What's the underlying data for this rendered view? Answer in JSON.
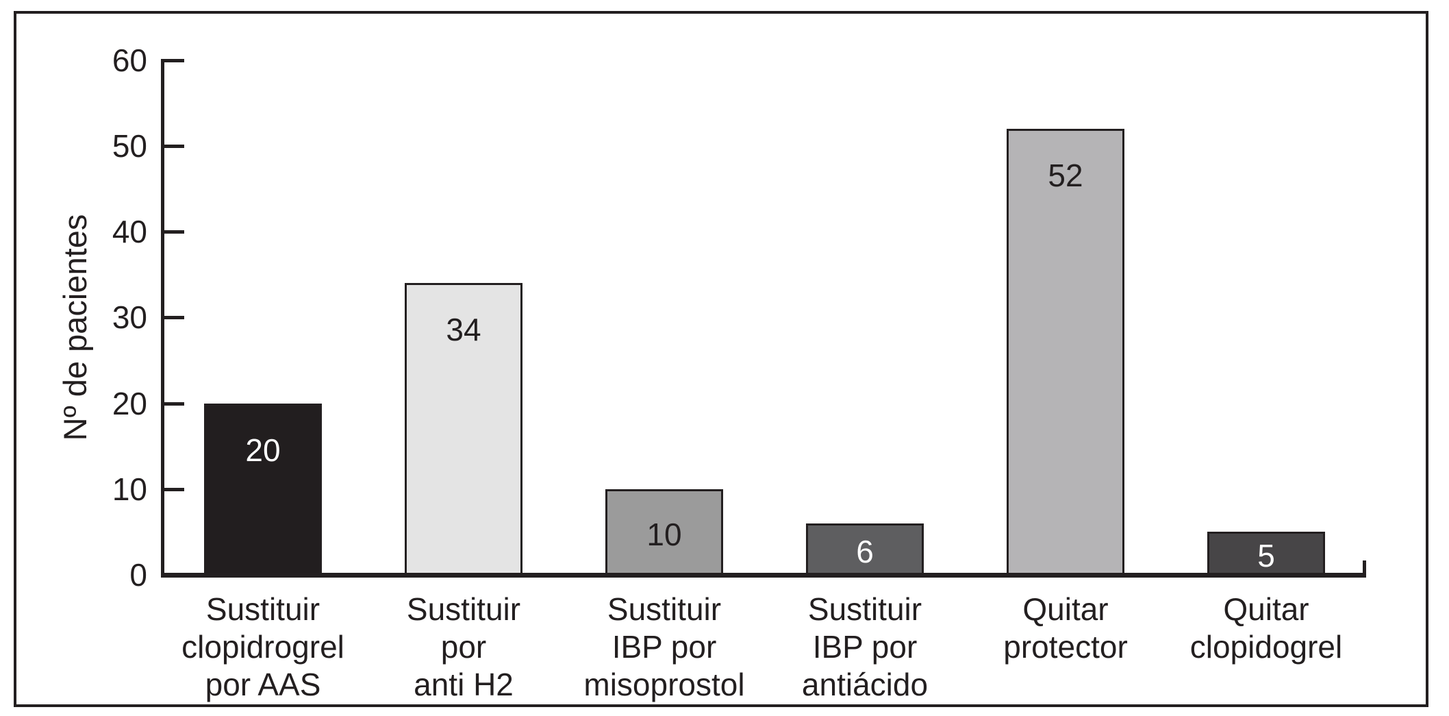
{
  "chart_data": {
    "type": "bar",
    "title": "",
    "ylabel": "Nº de pacientes",
    "xlabel": "",
    "ylim": [
      0,
      60
    ],
    "yticks": [
      0,
      10,
      20,
      30,
      40,
      50,
      60
    ],
    "grid": false,
    "legend": null,
    "categories": [
      "Sustituir\nclopidrogrel\npor AAS",
      "Sustituir\npor\nanti H2",
      "Sustituir\nIBP por\nmisoprostol",
      "Sustituir\nIBP por\nantiácido",
      "Quitar\nprotector",
      "Quitar\nclopidogrel"
    ],
    "values": [
      20,
      34,
      10,
      6,
      52,
      5
    ],
    "bar_colors": [
      "#221e1f",
      "#e4e4e4",
      "#9b9b9b",
      "#5e5e60",
      "#b5b4b6",
      "#474547"
    ],
    "value_label_colors": [
      "#ffffff",
      "#231f20",
      "#231f20",
      "#ffffff",
      "#231f20",
      "#ffffff"
    ],
    "axis_color": "#231f20",
    "frame_color": "#231f20",
    "background_color": "#ffffff"
  }
}
